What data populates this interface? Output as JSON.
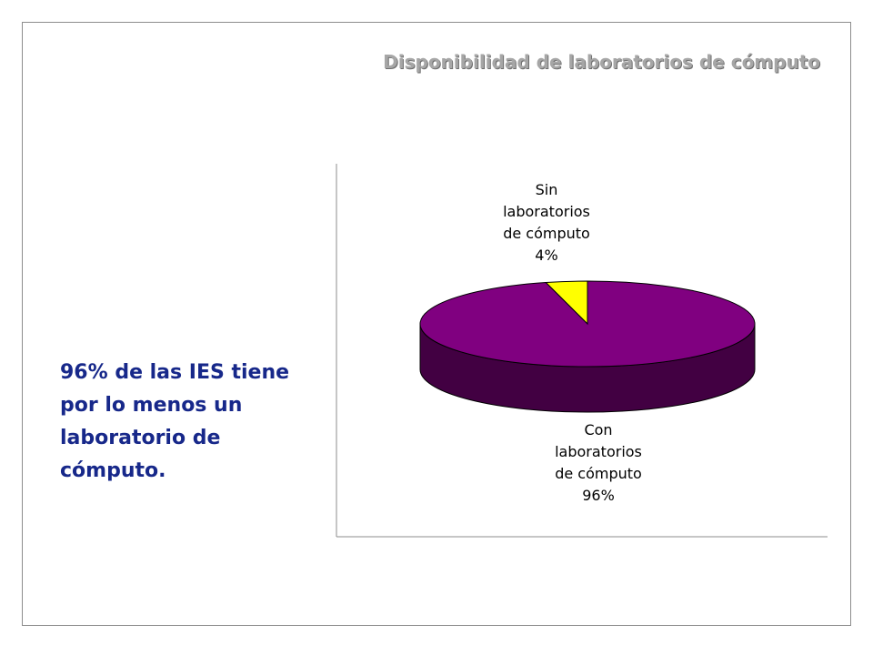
{
  "slide": {
    "title": "Disponibilidad de laboratorios de cómputo",
    "note_lines": [
      "96% de las IES tiene",
      "por lo menos un",
      "laboratorio de",
      "cómputo."
    ]
  },
  "chart_data": {
    "type": "pie",
    "style": "3d",
    "categories": [
      "Sin laboratorios de cómputo",
      "Con laboratorios de cómputo"
    ],
    "values": [
      4,
      96
    ],
    "value_labels": [
      "4%",
      "96%"
    ],
    "label_lines": [
      [
        "Sin",
        "laboratorios",
        "de cómputo",
        "4%"
      ],
      [
        "Con",
        "laboratorios",
        "de cómputo",
        "96%"
      ]
    ],
    "colors": [
      "#ffff00",
      "#800080"
    ],
    "side_colors": [
      "#8a8a00",
      "#420042"
    ],
    "legend": "none"
  }
}
